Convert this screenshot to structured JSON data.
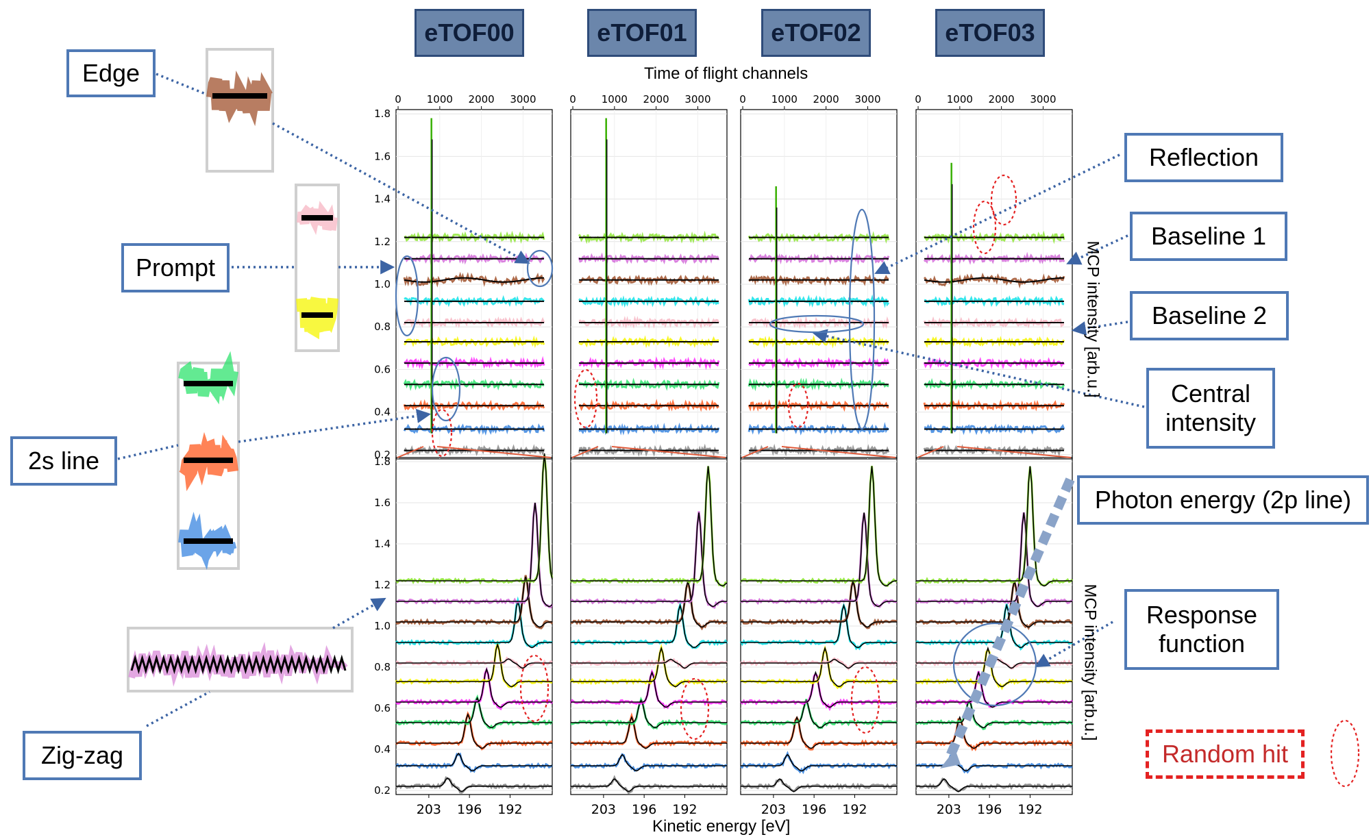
{
  "headers": [
    "eTOF00",
    "eTOF01",
    "eTOF02",
    "eTOF03"
  ],
  "labels": {
    "edge": "Edge",
    "prompt": "Prompt",
    "two_s_line": "2s line",
    "zig_zag": "Zig-zag",
    "reflection": "Reflection",
    "baseline1": "Baseline 1",
    "baseline2": "Baseline 2",
    "central_intensity": "Central intensity",
    "photon_energy": "Photon energy (2p line)",
    "response_function": "Response function",
    "random_hit": "Random hit"
  },
  "chart_data": [
    {
      "type": "line",
      "panel": "top",
      "xlabel": "Time of flight channels",
      "ylabel": "MCP intensity [arb.u.]",
      "xticks": [
        0,
        1000,
        2000,
        3000
      ],
      "xlim": [
        -50,
        3700
      ],
      "yticks": [
        0.2,
        0.4,
        0.6,
        0.8,
        1.0,
        1.2,
        1.4,
        1.6,
        1.8
      ],
      "ylim": [
        0.18,
        1.82
      ],
      "prompt_channel": 800,
      "offsets": [
        0.22,
        0.32,
        0.43,
        0.53,
        0.63,
        0.73,
        0.82,
        0.92,
        1.02,
        1.12,
        1.22
      ],
      "colors": [
        "#8a8a8a",
        "#3a86e0",
        "#ff5a1f",
        "#2fe36d",
        "#ff2bff",
        "#f6f600",
        "#f7b6c3",
        "#10e0e6",
        "#a0522d",
        "#d26cd8",
        "#8ee635"
      ],
      "grid": true
    },
    {
      "type": "line",
      "panel": "bottom",
      "xlabel": "Kinetic energy [eV]",
      "ylabel": "MCP intensity [arb.u.]",
      "xticks": [
        203,
        196,
        192
      ],
      "yticks": [
        0.2,
        0.4,
        0.6,
        0.8,
        1.0,
        1.2,
        1.4,
        1.6,
        1.8
      ],
      "ylim": [
        0.18,
        1.82
      ],
      "offsets": [
        0.22,
        0.32,
        0.43,
        0.53,
        0.63,
        0.73,
        0.82,
        0.92,
        1.02,
        1.12,
        1.22
      ],
      "colors": [
        "#8a8a8a",
        "#3a86e0",
        "#ff5a1f",
        "#2fe36d",
        "#ff2bff",
        "#f6f600",
        "#f7b6c3",
        "#10e0e6",
        "#a0522d",
        "#d26cd8",
        "#8ee635"
      ],
      "grid": true
    }
  ]
}
